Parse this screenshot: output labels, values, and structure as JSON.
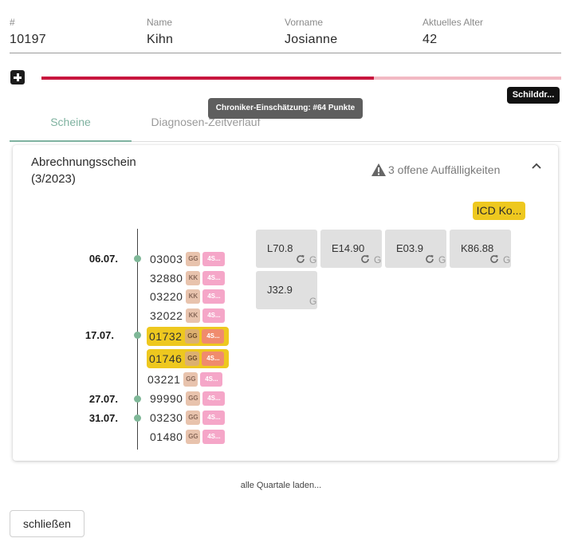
{
  "patient": {
    "id_label": "#",
    "id_value": "10197",
    "name_label": "Name",
    "name_value": "Kihn",
    "first_name_label": "Vorname",
    "first_name_value": "Josianne",
    "age_label": "Aktuelles Alter",
    "age_value": "42"
  },
  "progress": {
    "fraction": 0.64
  },
  "tooltip": "Chroniker-Einschätzung: #64 Punkte",
  "shield_button": "Schilddr...",
  "tabs": [
    "Scheine",
    "Diagnosen-Zeitverlauf"
  ],
  "card": {
    "title": "Abrechnungsschein",
    "subtitle": "(3/2023)",
    "warning": "3 offene Auffälligkeiten",
    "icd_button": "ICD Ko..."
  },
  "timeline": {
    "dates": [
      "06.07.",
      "17.07.",
      "27.07.",
      "31.07."
    ],
    "entries": [
      {
        "code": "03003",
        "tag1": "GG",
        "tag2": "4S..."
      },
      {
        "code": "32880",
        "tag1": "KK",
        "tag2": "4S..."
      },
      {
        "code": "03220",
        "tag1": "KK",
        "tag2": "4S..."
      },
      {
        "code": "32022",
        "tag1": "KK",
        "tag2": "4S..."
      },
      {
        "code": "01732",
        "tag1": "GG",
        "tag2": "4S..."
      },
      {
        "code": "01746",
        "tag1": "GG",
        "tag2": "4S..."
      },
      {
        "code": "03221",
        "tag1": "GG",
        "tag2": "4S..."
      },
      {
        "code": "99990",
        "tag1": "GG",
        "tag2": "4S..."
      },
      {
        "code": "03230",
        "tag1": "GG",
        "tag2": "4S..."
      },
      {
        "code": "01480",
        "tag1": "GG",
        "tag2": "4S..."
      }
    ]
  },
  "diagnoses": [
    {
      "code": "L70.8",
      "letter": "G"
    },
    {
      "code": "E14.90",
      "letter": "G"
    },
    {
      "code": "E03.9",
      "letter": "G"
    },
    {
      "code": "K86.88",
      "letter": "G"
    },
    {
      "code": "J32.9",
      "letter": "G"
    }
  ],
  "footer": {
    "load_link": "alle Quartale laden...",
    "close_button": "schließen"
  },
  "colors": {
    "accent": "#7fb2a0",
    "progress_fill": "#c8163e",
    "progress_track": "#f2b9c3",
    "highlight": "#eec81f"
  }
}
